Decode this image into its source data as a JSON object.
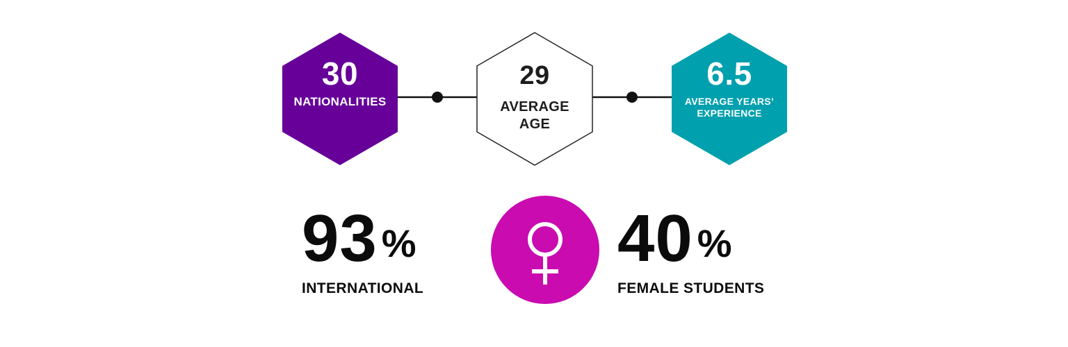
{
  "hexagons": [
    {
      "value": "30",
      "caption": "NATIONALITIES",
      "fill": "#660099"
    },
    {
      "value": "29",
      "caption_line1": "AVERAGE",
      "caption_line2": "AGE",
      "fill": "#ffffff"
    },
    {
      "value": "6.5",
      "caption_line1": "AVERAGE YEARS’",
      "caption_line2": "EXPERIENCE",
      "fill": "#00a0ae"
    }
  ],
  "stats": {
    "international": {
      "number": "93",
      "unit": "%",
      "caption": "INTERNATIONAL"
    },
    "female": {
      "number": "40",
      "unit": "%",
      "caption": "FEMALE STUDENTS"
    }
  },
  "icons": {
    "female_symbol": "female-symbol-icon",
    "female_circle_color": "#c90bb0"
  }
}
